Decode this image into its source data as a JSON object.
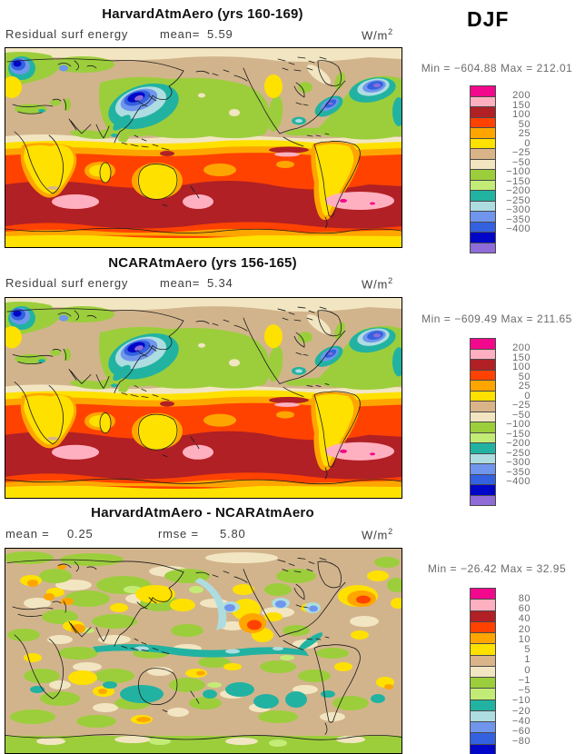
{
  "season": "DJF",
  "panels": [
    {
      "title": "HarvardAtmAero (yrs 160-169)",
      "field_label": "Residual surf energy",
      "mean_label": "mean=",
      "mean": "5.59",
      "units_base": "W/m",
      "units_exp": "2",
      "stats": {
        "min_label": "Min =",
        "min": "−604.88",
        "max_label": "Max =",
        "max": "212.01"
      },
      "colorbar": {
        "labels": [
          "200",
          "150",
          "100",
          "50",
          "25",
          "0",
          "−25",
          "−50",
          "−100",
          "−150",
          "−200",
          "−250",
          "−300",
          "−350",
          "−400"
        ],
        "colors": [
          "#F2088C",
          "#FFB0C0",
          "#B02025",
          "#FF4200",
          "#FFA500",
          "#FFE100",
          "#D9B489",
          "#F2E6C2",
          "#9CCE3C",
          "#C3EC77",
          "#22B2A2",
          "#AEDDE1",
          "#6F96EC",
          "#3361E0",
          "#0006C8",
          "#8F6CD8"
        ]
      }
    },
    {
      "title": "NCARAtmAero (yrs 156-165)",
      "field_label": "Residual surf energy",
      "mean_label": "mean=",
      "mean": "5.34",
      "units_base": "W/m",
      "units_exp": "2",
      "stats": {
        "min_label": "Min =",
        "min": "−609.49",
        "max_label": "Max =",
        "max": "211.65"
      },
      "colorbar": {
        "labels": [
          "200",
          "150",
          "100",
          "50",
          "25",
          "0",
          "−25",
          "−50",
          "−100",
          "−150",
          "−200",
          "−250",
          "−300",
          "−350",
          "−400"
        ],
        "colors": [
          "#F2088C",
          "#FFB0C0",
          "#B02025",
          "#FF4200",
          "#FFA500",
          "#FFE100",
          "#D9B489",
          "#F2E6C2",
          "#9CCE3C",
          "#C3EC77",
          "#22B2A2",
          "#AEDDE1",
          "#6F96EC",
          "#3361E0",
          "#0006C8",
          "#8F6CD8"
        ]
      }
    },
    {
      "title": "HarvardAtmAero - NCARAtmAero",
      "mean_label": "mean =",
      "mean": "0.25",
      "rmse_label": "rmse =",
      "rmse": "5.80",
      "units_base": "W/m",
      "units_exp": "2",
      "stats": {
        "min_label": "Min =",
        "min": "−26.42",
        "max_label": "Max =",
        "max": "32.95"
      },
      "colorbar": {
        "labels": [
          "80",
          "60",
          "40",
          "20",
          "10",
          "5",
          "1",
          "0",
          "−1",
          "−5",
          "−10",
          "−20",
          "−40",
          "−60",
          "−80"
        ],
        "colors": [
          "#F2088C",
          "#FFB0C0",
          "#B02025",
          "#FF4200",
          "#FFA500",
          "#FFE100",
          "#D9B489",
          "#F2E6C2",
          "#9CCE3C",
          "#C3EC77",
          "#22B2A2",
          "#AEDDE1",
          "#6F96EC",
          "#3361E0",
          "#0006C8",
          "#8F6CD8"
        ]
      }
    }
  ],
  "chart_data": [
    {
      "type": "heatmap",
      "subtype": "filled-contour-world-map",
      "title": "HarvardAtmAero (yrs 160-169)",
      "variable": "Residual surf energy",
      "units": "W/m^2",
      "season": "DJF",
      "mean": 5.59,
      "min": -604.88,
      "max": 212.01,
      "contour_levels": [
        -400,
        -350,
        -300,
        -250,
        -200,
        -150,
        -100,
        -50,
        -25,
        0,
        25,
        50,
        100,
        150,
        200
      ],
      "palette_top_to_bottom": [
        "#F2088C",
        "#FFB0C0",
        "#B02025",
        "#FF4200",
        "#FFA500",
        "#FFE100",
        "#D9B489",
        "#F2E6C2",
        "#9CCE3C",
        "#C3EC77",
        "#22B2A2",
        "#AEDDE1",
        "#6F96EC",
        "#3361E0",
        "#0006C8",
        "#8F6CD8"
      ],
      "legend_position": "right"
    },
    {
      "type": "heatmap",
      "subtype": "filled-contour-world-map",
      "title": "NCARAtmAero (yrs 156-165)",
      "variable": "Residual surf energy",
      "units": "W/m^2",
      "season": "DJF",
      "mean": 5.34,
      "min": -609.49,
      "max": 211.65,
      "contour_levels": [
        -400,
        -350,
        -300,
        -250,
        -200,
        -150,
        -100,
        -50,
        -25,
        0,
        25,
        50,
        100,
        150,
        200
      ],
      "palette_top_to_bottom": [
        "#F2088C",
        "#FFB0C0",
        "#B02025",
        "#FF4200",
        "#FFA500",
        "#FFE100",
        "#D9B489",
        "#F2E6C2",
        "#9CCE3C",
        "#C3EC77",
        "#22B2A2",
        "#AEDDE1",
        "#6F96EC",
        "#3361E0",
        "#0006C8",
        "#8F6CD8"
      ],
      "legend_position": "right"
    },
    {
      "type": "heatmap",
      "subtype": "difference-map",
      "title": "HarvardAtmAero - NCARAtmAero",
      "units": "W/m^2",
      "season": "DJF",
      "mean": 0.25,
      "rmse": 5.8,
      "min": -26.42,
      "max": 32.95,
      "contour_levels": [
        -80,
        -60,
        -40,
        -20,
        -10,
        -5,
        -1,
        0,
        1,
        5,
        10,
        20,
        40,
        60,
        80
      ],
      "palette_top_to_bottom": [
        "#F2088C",
        "#FFB0C0",
        "#B02025",
        "#FF4200",
        "#FFA500",
        "#FFE100",
        "#D9B489",
        "#F2E6C2",
        "#9CCE3C",
        "#C3EC77",
        "#22B2A2",
        "#AEDDE1",
        "#6F96EC",
        "#3361E0",
        "#0006C8",
        "#8F6CD8"
      ],
      "legend_position": "right"
    }
  ]
}
